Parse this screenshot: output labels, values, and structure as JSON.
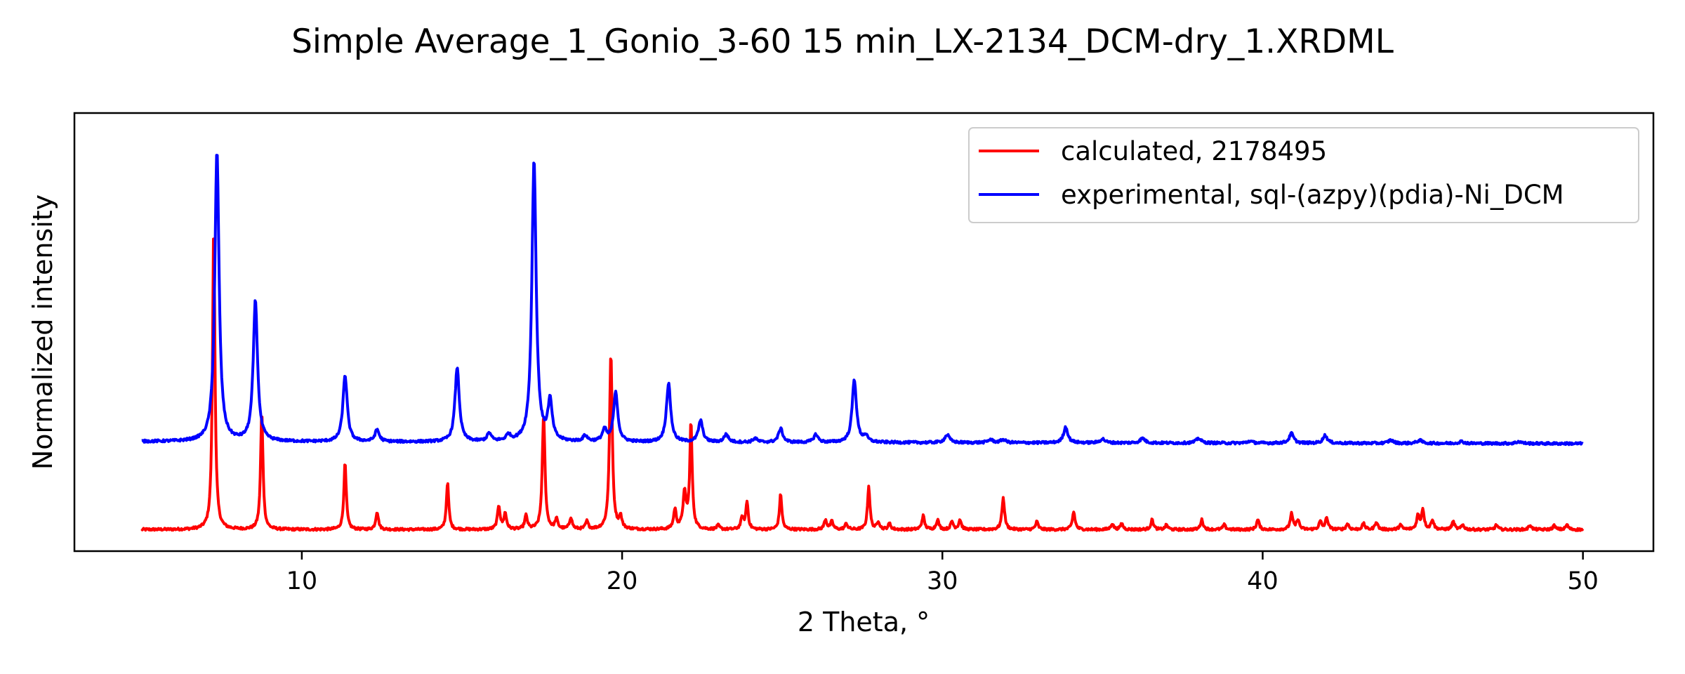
{
  "chart_data": {
    "type": "line",
    "title": "Simple Average_1_Gonio_3-60 15 min_LX-2134_DCM-dry_1.XRDML",
    "xlabel": "2 Theta, °",
    "ylabel": "Normalized intensity",
    "xlim": [
      2.9,
      52.2
    ],
    "ylim": [
      -0.05,
      1.07
    ],
    "xticks": [
      10,
      20,
      30,
      40,
      50
    ],
    "y_tick_labels": false,
    "grid": false,
    "legend_position": "top-right",
    "x_range": [
      5,
      50
    ],
    "series": [
      {
        "name": "calculated, 2178495",
        "color": "#ff0000",
        "baseline": 0.005,
        "noise": 0.003,
        "peaks": [
          [
            7.25,
            0.78,
            0.045
          ],
          [
            8.75,
            0.3,
            0.045
          ],
          [
            11.35,
            0.17,
            0.045
          ],
          [
            12.35,
            0.045,
            0.05
          ],
          [
            14.55,
            0.12,
            0.045
          ],
          [
            16.15,
            0.06,
            0.05
          ],
          [
            16.35,
            0.04,
            0.05
          ],
          [
            17.0,
            0.035,
            0.05
          ],
          [
            17.55,
            0.29,
            0.05
          ],
          [
            17.95,
            0.025,
            0.05
          ],
          [
            18.4,
            0.03,
            0.05
          ],
          [
            18.9,
            0.02,
            0.05
          ],
          [
            19.65,
            0.45,
            0.05
          ],
          [
            19.95,
            0.03,
            0.05
          ],
          [
            21.65,
            0.05,
            0.05
          ],
          [
            21.95,
            0.09,
            0.06
          ],
          [
            22.15,
            0.27,
            0.045
          ],
          [
            23.0,
            0.01,
            0.05
          ],
          [
            23.75,
            0.03,
            0.05
          ],
          [
            23.9,
            0.07,
            0.045
          ],
          [
            24.95,
            0.09,
            0.045
          ],
          [
            26.35,
            0.025,
            0.05
          ],
          [
            26.55,
            0.02,
            0.05
          ],
          [
            27.0,
            0.015,
            0.05
          ],
          [
            27.7,
            0.11,
            0.045
          ],
          [
            28.0,
            0.02,
            0.05
          ],
          [
            28.35,
            0.015,
            0.05
          ],
          [
            29.4,
            0.035,
            0.05
          ],
          [
            29.85,
            0.025,
            0.05
          ],
          [
            30.3,
            0.02,
            0.05
          ],
          [
            30.55,
            0.025,
            0.05
          ],
          [
            31.9,
            0.08,
            0.05
          ],
          [
            32.95,
            0.02,
            0.05
          ],
          [
            34.1,
            0.045,
            0.05
          ],
          [
            35.3,
            0.015,
            0.05
          ],
          [
            35.6,
            0.015,
            0.05
          ],
          [
            36.55,
            0.025,
            0.05
          ],
          [
            37.0,
            0.012,
            0.05
          ],
          [
            38.1,
            0.025,
            0.05
          ],
          [
            38.8,
            0.012,
            0.05
          ],
          [
            39.85,
            0.025,
            0.05
          ],
          [
            40.9,
            0.04,
            0.05
          ],
          [
            41.1,
            0.025,
            0.05
          ],
          [
            41.8,
            0.02,
            0.05
          ],
          [
            42.0,
            0.03,
            0.05
          ],
          [
            42.65,
            0.015,
            0.05
          ],
          [
            43.15,
            0.015,
            0.05
          ],
          [
            43.55,
            0.02,
            0.05
          ],
          [
            44.3,
            0.012,
            0.05
          ],
          [
            44.85,
            0.035,
            0.05
          ],
          [
            45.0,
            0.05,
            0.05
          ],
          [
            45.3,
            0.025,
            0.05
          ],
          [
            45.95,
            0.02,
            0.05
          ],
          [
            46.25,
            0.012,
            0.05
          ],
          [
            47.3,
            0.012,
            0.05
          ],
          [
            48.35,
            0.012,
            0.05
          ],
          [
            49.1,
            0.01,
            0.05
          ],
          [
            49.5,
            0.012,
            0.05
          ]
        ]
      },
      {
        "name": "experimental, sql-(azpy)(pdia)-Ni_DCM",
        "color": "#0000ff",
        "baseline_start": 0.23,
        "baseline_end": 0.225,
        "noise": 0.003,
        "peaks": [
          [
            7.35,
            0.74,
            0.08
          ],
          [
            8.55,
            0.36,
            0.08
          ],
          [
            11.35,
            0.17,
            0.08
          ],
          [
            12.35,
            0.03,
            0.08
          ],
          [
            14.85,
            0.19,
            0.08
          ],
          [
            15.85,
            0.02,
            0.08
          ],
          [
            16.45,
            0.015,
            0.08
          ],
          [
            17.25,
            0.72,
            0.08
          ],
          [
            17.75,
            0.1,
            0.08
          ],
          [
            18.85,
            0.015,
            0.08
          ],
          [
            19.45,
            0.03,
            0.08
          ],
          [
            19.8,
            0.125,
            0.08
          ],
          [
            21.45,
            0.15,
            0.08
          ],
          [
            22.45,
            0.055,
            0.08
          ],
          [
            23.25,
            0.02,
            0.08
          ],
          [
            24.15,
            0.01,
            0.08
          ],
          [
            24.95,
            0.035,
            0.08
          ],
          [
            26.05,
            0.02,
            0.08
          ],
          [
            27.25,
            0.16,
            0.08
          ],
          [
            27.6,
            0.015,
            0.08
          ],
          [
            30.15,
            0.02,
            0.09
          ],
          [
            31.5,
            0.008,
            0.09
          ],
          [
            31.9,
            0.008,
            0.09
          ],
          [
            33.85,
            0.04,
            0.08
          ],
          [
            35.0,
            0.01,
            0.09
          ],
          [
            36.25,
            0.012,
            0.09
          ],
          [
            38.0,
            0.012,
            0.09
          ],
          [
            39.6,
            0.005,
            0.09
          ],
          [
            40.9,
            0.025,
            0.08
          ],
          [
            41.95,
            0.02,
            0.08
          ],
          [
            44.0,
            0.008,
            0.09
          ],
          [
            44.9,
            0.008,
            0.09
          ],
          [
            46.2,
            0.005,
            0.09
          ],
          [
            48.0,
            0.005,
            0.09
          ]
        ]
      }
    ]
  }
}
